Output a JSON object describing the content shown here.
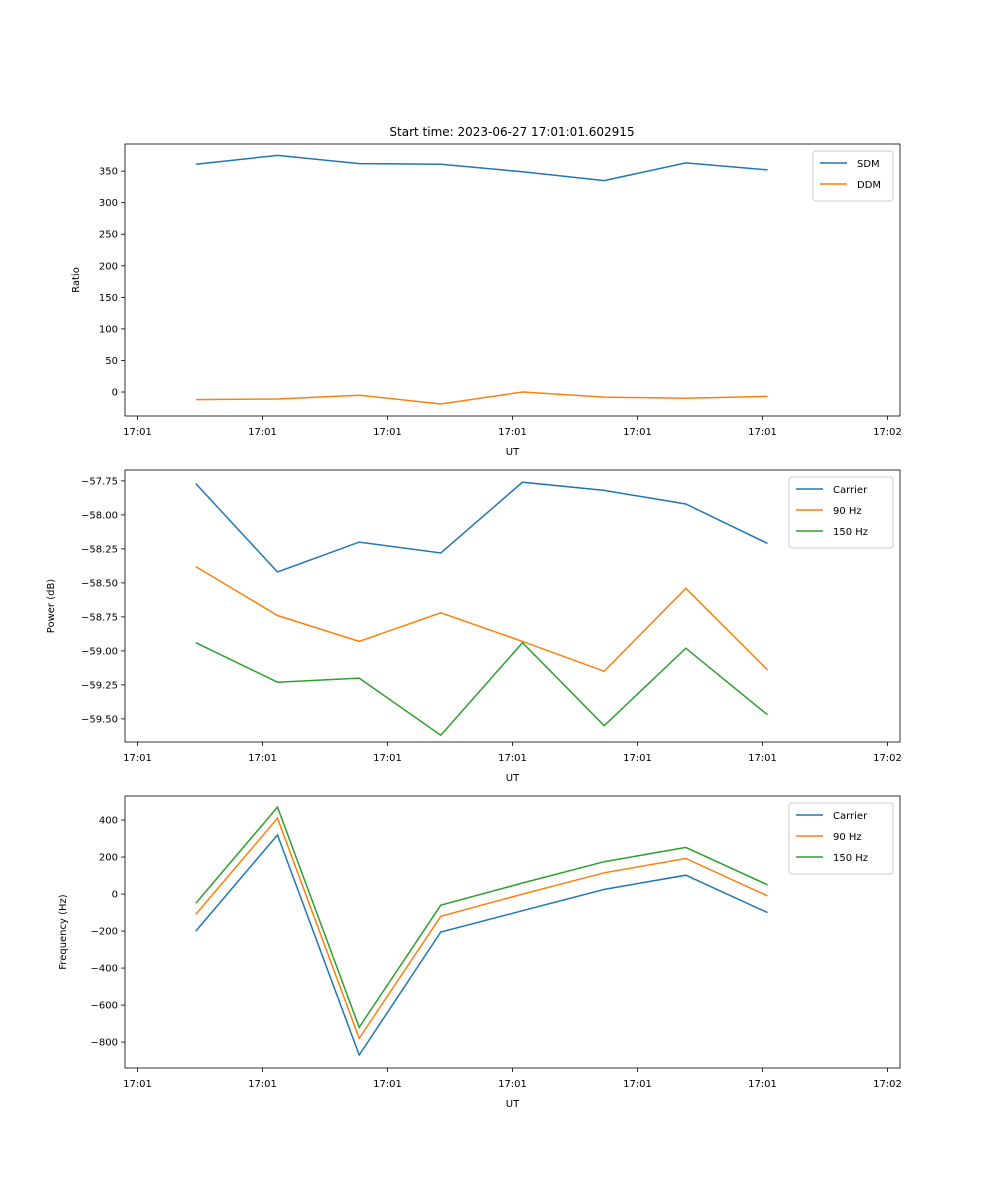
{
  "figure_title": "Start time: 2023-06-27 17:01:01.602915",
  "chart_data": [
    {
      "type": "line",
      "title": "Start time: 2023-06-27 17:01:01.602915",
      "xlabel": "UT",
      "ylabel": "Ratio",
      "xlim": [
        -0.15,
        9.15
      ],
      "ylim": [
        -38,
        393
      ],
      "x_tick_values": [
        0,
        1.5,
        3,
        4.5,
        6,
        7.5,
        9
      ],
      "x_tick_labels": [
        "17:01",
        "17:01",
        "17:01",
        "17:01",
        "17:01",
        "17:01",
        "17:02"
      ],
      "y_tick_values": [
        0,
        50,
        100,
        150,
        200,
        250,
        300,
        350
      ],
      "y_tick_labels": [
        "0",
        "50",
        "100",
        "150",
        "200",
        "250",
        "300",
        "350"
      ],
      "legend_position": "upper right",
      "grid": false,
      "x": [
        0.7,
        1.68,
        2.66,
        3.64,
        4.62,
        5.6,
        6.58,
        7.56
      ],
      "series": [
        {
          "name": "SDM",
          "color": "#1f77b4",
          "values": [
            361,
            375,
            362,
            361,
            349,
            335,
            363,
            352
          ]
        },
        {
          "name": "DDM",
          "color": "#ff7f0e",
          "values": [
            -12,
            -11,
            -5,
            -19,
            0,
            -8,
            -10,
            -7
          ]
        }
      ]
    },
    {
      "type": "line",
      "title": "",
      "xlabel": "UT",
      "ylabel": "Power (dB)",
      "xlim": [
        -0.15,
        9.15
      ],
      "ylim": [
        -59.67,
        -57.67
      ],
      "x_tick_values": [
        0,
        1.5,
        3,
        4.5,
        6,
        7.5,
        9
      ],
      "x_tick_labels": [
        "17:01",
        "17:01",
        "17:01",
        "17:01",
        "17:01",
        "17:01",
        "17:02"
      ],
      "y_tick_values": [
        -57.75,
        -58.0,
        -58.25,
        -58.5,
        -58.75,
        -59.0,
        -59.25,
        -59.5
      ],
      "y_tick_labels": [
        "−57.75",
        "−58.00",
        "−58.25",
        "−58.50",
        "−58.75",
        "−59.00",
        "−59.25",
        "−59.50"
      ],
      "legend_position": "upper right",
      "grid": false,
      "x": [
        0.7,
        1.68,
        2.66,
        3.64,
        4.62,
        5.6,
        6.58,
        7.56
      ],
      "series": [
        {
          "name": "Carrier",
          "color": "#1f77b4",
          "values": [
            -57.77,
            -58.42,
            -58.2,
            -58.28,
            -57.76,
            -57.82,
            -57.92,
            -58.21
          ]
        },
        {
          "name": "90 Hz",
          "color": "#ff7f0e",
          "values": [
            -58.38,
            -58.74,
            -58.93,
            -58.72,
            -58.93,
            -59.15,
            -58.54,
            -59.14
          ]
        },
        {
          "name": "150 Hz",
          "color": "#2ca02c",
          "values": [
            -58.94,
            -59.23,
            -59.2,
            -59.62,
            -58.94,
            -59.55,
            -58.98,
            -59.47
          ]
        }
      ]
    },
    {
      "type": "line",
      "title": "",
      "xlabel": "UT",
      "ylabel": "Frequency (Hz)",
      "xlim": [
        -0.15,
        9.15
      ],
      "ylim": [
        -940,
        530
      ],
      "x_tick_values": [
        0,
        1.5,
        3,
        4.5,
        6,
        7.5,
        9
      ],
      "x_tick_labels": [
        "17:01",
        "17:01",
        "17:01",
        "17:01",
        "17:01",
        "17:01",
        "17:02"
      ],
      "y_tick_values": [
        400,
        200,
        0,
        -200,
        -400,
        -600,
        -800
      ],
      "y_tick_labels": [
        "400",
        "200",
        "0",
        "−200",
        "−400",
        "−600",
        "−800"
      ],
      "legend_position": "upper right",
      "grid": false,
      "x": [
        0.7,
        1.68,
        2.66,
        3.64,
        4.62,
        5.6,
        6.58,
        7.56
      ],
      "series": [
        {
          "name": "Carrier",
          "color": "#1f77b4",
          "values": [
            -200,
            320,
            -870,
            -205,
            -90,
            25,
            102,
            -100
          ]
        },
        {
          "name": "90 Hz",
          "color": "#ff7f0e",
          "values": [
            -110,
            410,
            -780,
            -120,
            0,
            115,
            192,
            -10
          ]
        },
        {
          "name": "150 Hz",
          "color": "#2ca02c",
          "values": [
            -50,
            470,
            -720,
            -60,
            60,
            175,
            252,
            50
          ]
        }
      ]
    }
  ]
}
